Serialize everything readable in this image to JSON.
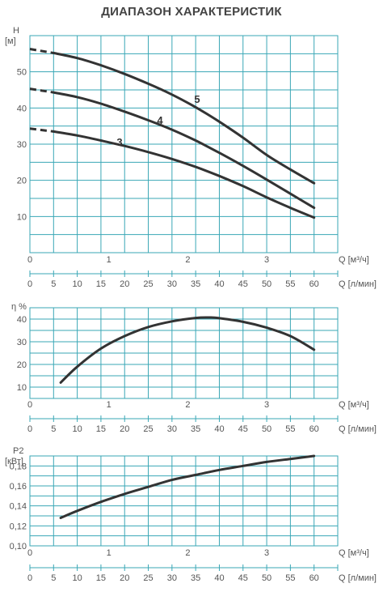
{
  "title": "ДИАПАЗОН ХАРАКТЕРИСТИК",
  "chart_data": [
    {
      "type": "line",
      "ylabel": "H",
      "yunit": "[м]",
      "xlabel_m3h": "Q [м³/ч]",
      "xlabel_lmin": "Q [л/мин]",
      "ylim": [
        0,
        60
      ],
      "yticks": [
        "10",
        "20",
        "30",
        "40",
        "50"
      ],
      "xlim_lmin": [
        0,
        65
      ],
      "xticks_m3h": [
        "0",
        "1",
        "2",
        "3"
      ],
      "xticks_lmin": [
        "0",
        "5",
        "10",
        "15",
        "20",
        "25",
        "30",
        "35",
        "40",
        "45",
        "50",
        "55",
        "60"
      ],
      "grid": true,
      "series": [
        {
          "name": "3",
          "x_lmin": [
            0,
            5,
            10,
            15,
            20,
            25,
            30,
            35,
            40,
            45,
            50,
            55,
            60
          ],
          "y": [
            34.3,
            33.5,
            32.4,
            31.0,
            29.5,
            27.8,
            25.9,
            23.7,
            21.2,
            18.4,
            15.3,
            12.4,
            9.7
          ]
        },
        {
          "name": "4",
          "x_lmin": [
            0,
            5,
            10,
            15,
            20,
            25,
            30,
            35,
            40,
            45,
            50,
            55,
            60
          ],
          "y": [
            45.3,
            44.3,
            43.0,
            41.2,
            39.0,
            36.6,
            34.0,
            31.0,
            27.6,
            24.0,
            20.2,
            16.3,
            12.4
          ]
        },
        {
          "name": "5",
          "x_lmin": [
            0,
            5,
            10,
            15,
            20,
            25,
            30,
            35,
            40,
            45,
            50,
            55,
            60
          ],
          "y": [
            56.3,
            55.2,
            53.8,
            51.8,
            49.4,
            46.7,
            43.7,
            40.2,
            36.2,
            31.8,
            27.0,
            23.0,
            19.2
          ]
        }
      ]
    },
    {
      "type": "line",
      "ylabel": "η %",
      "xlabel_m3h": "Q [м³/ч]",
      "xlabel_lmin": "Q [л/мин]",
      "ylim": [
        5,
        45
      ],
      "yticks": [
        "10",
        "20",
        "30",
        "40"
      ],
      "xticks_m3h": [
        "0",
        "1",
        "2",
        "3"
      ],
      "xticks_lmin": [
        "0",
        "5",
        "10",
        "15",
        "20",
        "25",
        "30",
        "35",
        "40",
        "45",
        "50",
        "55",
        "60"
      ],
      "grid": true,
      "series": [
        {
          "x_lmin": [
            6.5,
            10,
            15,
            20,
            25,
            30,
            35,
            38,
            40,
            45,
            50,
            55,
            60
          ],
          "y": [
            12,
            19,
            27,
            32.5,
            36.5,
            39,
            40.5,
            40.7,
            40.4,
            38.8,
            36.2,
            32.5,
            26.5
          ]
        }
      ]
    },
    {
      "type": "line",
      "ylabel": "P2",
      "yunit": "[кВт]",
      "xlabel_m3h": "Q [м³/ч]",
      "xlabel_lmin": "Q [л/мин]",
      "ylim": [
        0.1,
        0.19
      ],
      "yticks": [
        "0,10",
        "0,12",
        "0,14",
        "0,16",
        "0,18"
      ],
      "xticks_m3h": [
        "0",
        "1",
        "2",
        "3"
      ],
      "xticks_lmin": [
        "0",
        "5",
        "10",
        "15",
        "20",
        "25",
        "30",
        "35",
        "40",
        "45",
        "50",
        "55",
        "60"
      ],
      "grid": true,
      "series": [
        {
          "x_lmin": [
            6.5,
            10,
            15,
            20,
            25,
            30,
            35,
            40,
            45,
            50,
            55,
            60
          ],
          "y": [
            0.128,
            0.135,
            0.144,
            0.152,
            0.159,
            0.166,
            0.171,
            0.176,
            0.18,
            0.184,
            0.187,
            0.19
          ]
        }
      ]
    }
  ]
}
